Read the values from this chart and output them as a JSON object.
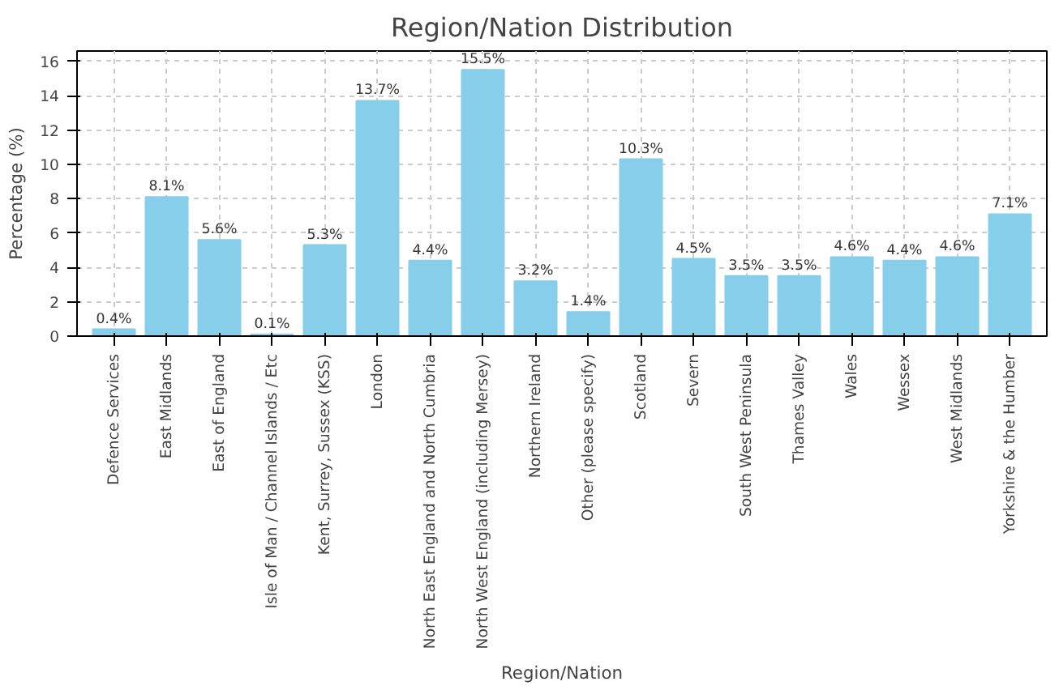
{
  "chart_data": {
    "type": "bar",
    "title": "Region/Nation Distribution",
    "xlabel": "Region/Nation",
    "ylabel": "Percentage (%)",
    "categories": [
      "Defence Services",
      "East Midlands",
      "East of England",
      "Isle of Man / Channel Islands / Etc",
      "Kent, Surrey, Sussex (KSS)",
      "London",
      "North East England and North Cumbria",
      "North West England (including Mersey)",
      "Northern Ireland",
      "Other (please specify)",
      "Scotland",
      "Severn",
      "South West Peninsula",
      "Thames Valley",
      "Wales",
      "Wessex",
      "West Midlands",
      "Yorkshire & the Humber"
    ],
    "values": [
      0.4,
      8.1,
      5.6,
      0.1,
      5.3,
      13.7,
      4.4,
      15.5,
      3.2,
      1.4,
      10.3,
      4.5,
      3.5,
      3.5,
      4.6,
      4.4,
      4.6,
      7.1
    ],
    "value_labels": [
      "0.4%",
      "8.1%",
      "5.6%",
      "0.1%",
      "5.3%",
      "13.7%",
      "4.4%",
      "15.5%",
      "3.2%",
      "1.4%",
      "10.3%",
      "4.5%",
      "3.5%",
      "3.5%",
      "4.6%",
      "4.4%",
      "4.6%",
      "7.1%"
    ],
    "color": "#87ceeb",
    "ylim": [
      0,
      16.6
    ],
    "yticks": [
      0,
      2,
      4,
      6,
      8,
      10,
      12,
      14,
      16
    ],
    "grid": true
  }
}
